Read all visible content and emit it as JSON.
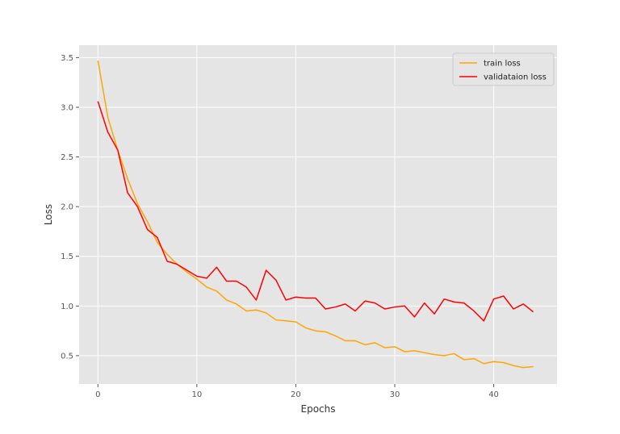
{
  "chart_data": {
    "type": "line",
    "xlabel": "Epochs",
    "ylabel": "Loss",
    "xlim": [
      -1.9,
      46.4
    ],
    "ylim": [
      0.215,
      3.625
    ],
    "xticks": [
      0,
      10,
      20,
      30,
      40
    ],
    "yticks": [
      0.5,
      1.0,
      1.5,
      2.0,
      2.5,
      3.0,
      3.5
    ],
    "grid": true,
    "legend_position": "top-right",
    "x": [
      0,
      1,
      2,
      3,
      4,
      5,
      6,
      7,
      8,
      9,
      10,
      11,
      12,
      13,
      14,
      15,
      16,
      17,
      18,
      19,
      20,
      21,
      22,
      23,
      24,
      25,
      26,
      27,
      28,
      29,
      30,
      31,
      32,
      33,
      34,
      35,
      36,
      37,
      38,
      39,
      40,
      41,
      42,
      43,
      44
    ],
    "series": [
      {
        "name": "train loss",
        "color": "#ffa500",
        "values": [
          3.47,
          2.9,
          2.57,
          2.28,
          2.03,
          1.85,
          1.64,
          1.52,
          1.42,
          1.34,
          1.27,
          1.19,
          1.15,
          1.06,
          1.02,
          0.95,
          0.96,
          0.93,
          0.86,
          0.85,
          0.84,
          0.78,
          0.75,
          0.74,
          0.7,
          0.65,
          0.65,
          0.61,
          0.63,
          0.58,
          0.59,
          0.54,
          0.55,
          0.53,
          0.51,
          0.5,
          0.52,
          0.46,
          0.47,
          0.42,
          0.44,
          0.43,
          0.4,
          0.38,
          0.39
        ]
      },
      {
        "name": "validataion loss",
        "color": "#ff0000",
        "values": [
          3.06,
          2.75,
          2.57,
          2.14,
          2.0,
          1.77,
          1.69,
          1.45,
          1.42,
          1.36,
          1.3,
          1.28,
          1.39,
          1.25,
          1.25,
          1.19,
          1.06,
          1.36,
          1.26,
          1.06,
          1.09,
          1.08,
          1.08,
          0.97,
          0.99,
          1.02,
          0.95,
          1.05,
          1.03,
          0.97,
          0.99,
          1.0,
          0.89,
          1.03,
          0.92,
          1.07,
          1.04,
          1.03,
          0.95,
          0.85,
          1.07,
          1.1,
          0.97,
          1.02,
          0.94
        ]
      }
    ]
  }
}
